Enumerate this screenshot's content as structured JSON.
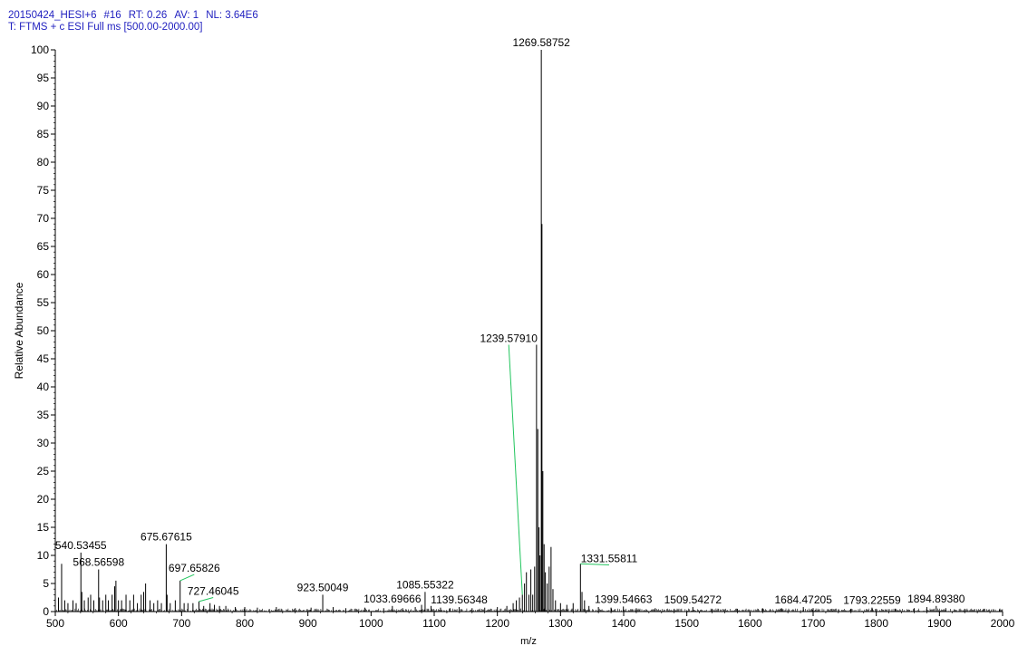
{
  "header": {
    "filename": "20150424_HESI+6",
    "scan": "#16",
    "rt": "RT: 0.26",
    "av": "AV: 1",
    "nl": "NL: 3.64E6",
    "filter": "T: FTMS + c ESI Full ms [500.00-2000.00]"
  },
  "colors": {
    "header_text": "#1f1fbf",
    "spectrum": "#000000",
    "label_leader": "#22c55e",
    "axis": "#000000"
  },
  "chart_data": {
    "type": "mass-spectrum",
    "xlabel": "m/z",
    "ylabel": "Relative Abundance",
    "xlim": [
      500,
      2000
    ],
    "ylim": [
      0,
      100
    ],
    "x_ticks": [
      500,
      600,
      700,
      800,
      900,
      1000,
      1100,
      1200,
      1300,
      1400,
      1500,
      1600,
      1700,
      1800,
      1900,
      2000
    ],
    "x_tick_labels": [
      "500",
      "600",
      "700",
      "800",
      "900",
      "1000",
      "1100",
      "1200",
      "1300",
      "1400",
      "1500",
      "1600",
      "1700",
      "1800",
      "1900",
      "2000"
    ],
    "y_ticks": [
      0,
      5,
      10,
      15,
      20,
      25,
      30,
      35,
      40,
      45,
      50,
      55,
      60,
      65,
      70,
      75,
      80,
      85,
      90,
      95,
      100
    ],
    "y_tick_labels": [
      "0",
      "5",
      "10",
      "15",
      "20",
      "25",
      "30",
      "35",
      "40",
      "45",
      "50",
      "55",
      "60",
      "65",
      "70",
      "75",
      "80",
      "85",
      "90",
      "95",
      "100"
    ],
    "peaks": [
      {
        "mz": 505,
        "ab": 2.5
      },
      {
        "mz": 510,
        "ab": 8.5
      },
      {
        "mz": 515,
        "ab": 2
      },
      {
        "mz": 520,
        "ab": 1.5
      },
      {
        "mz": 528,
        "ab": 2
      },
      {
        "mz": 533,
        "ab": 1.5
      },
      {
        "mz": 540.53455,
        "ab": 10.5
      },
      {
        "mz": 542,
        "ab": 3.5
      },
      {
        "mz": 546,
        "ab": 2
      },
      {
        "mz": 552,
        "ab": 2.5
      },
      {
        "mz": 556,
        "ab": 3
      },
      {
        "mz": 561,
        "ab": 2
      },
      {
        "mz": 568.56598,
        "ab": 7.5
      },
      {
        "mz": 570,
        "ab": 2.5
      },
      {
        "mz": 575,
        "ab": 2
      },
      {
        "mz": 580,
        "ab": 3
      },
      {
        "mz": 584,
        "ab": 2
      },
      {
        "mz": 590,
        "ab": 3
      },
      {
        "mz": 594,
        "ab": 4.5
      },
      {
        "mz": 596,
        "ab": 5.5
      },
      {
        "mz": 600,
        "ab": 2
      },
      {
        "mz": 605,
        "ab": 2
      },
      {
        "mz": 612,
        "ab": 3
      },
      {
        "mz": 618,
        "ab": 2
      },
      {
        "mz": 624,
        "ab": 3
      },
      {
        "mz": 630,
        "ab": 1.5
      },
      {
        "mz": 636,
        "ab": 3
      },
      {
        "mz": 640,
        "ab": 3.5
      },
      {
        "mz": 643,
        "ab": 5
      },
      {
        "mz": 650,
        "ab": 2
      },
      {
        "mz": 656,
        "ab": 1.5
      },
      {
        "mz": 662,
        "ab": 2
      },
      {
        "mz": 668,
        "ab": 1.5
      },
      {
        "mz": 675.67615,
        "ab": 12
      },
      {
        "mz": 677,
        "ab": 3
      },
      {
        "mz": 682,
        "ab": 1.5
      },
      {
        "mz": 690,
        "ab": 2
      },
      {
        "mz": 697.65826,
        "ab": 5.5
      },
      {
        "mz": 704,
        "ab": 1.5
      },
      {
        "mz": 710,
        "ab": 1.5
      },
      {
        "mz": 718,
        "ab": 1.5
      },
      {
        "mz": 727.46045,
        "ab": 1.8
      },
      {
        "mz": 735,
        "ab": 1
      },
      {
        "mz": 745,
        "ab": 1.5
      },
      {
        "mz": 752,
        "ab": 1.2
      },
      {
        "mz": 760,
        "ab": 1
      },
      {
        "mz": 770,
        "ab": 1
      },
      {
        "mz": 785,
        "ab": 0.8
      },
      {
        "mz": 800,
        "ab": 0.8
      },
      {
        "mz": 820,
        "ab": 0.7
      },
      {
        "mz": 850,
        "ab": 0.8
      },
      {
        "mz": 880,
        "ab": 0.6
      },
      {
        "mz": 905,
        "ab": 0.7
      },
      {
        "mz": 923.50049,
        "ab": 3
      },
      {
        "mz": 940,
        "ab": 0.8
      },
      {
        "mz": 960,
        "ab": 0.6
      },
      {
        "mz": 990,
        "ab": 0.7
      },
      {
        "mz": 1020,
        "ab": 0.6
      },
      {
        "mz": 1033.69666,
        "ab": 1
      },
      {
        "mz": 1050,
        "ab": 0.6
      },
      {
        "mz": 1070,
        "ab": 0.8
      },
      {
        "mz": 1080,
        "ab": 1.2
      },
      {
        "mz": 1085.55322,
        "ab": 3.5
      },
      {
        "mz": 1095,
        "ab": 1
      },
      {
        "mz": 1110,
        "ab": 0.7
      },
      {
        "mz": 1125,
        "ab": 0.6
      },
      {
        "mz": 1139.56348,
        "ab": 0.8
      },
      {
        "mz": 1160,
        "ab": 0.6
      },
      {
        "mz": 1180,
        "ab": 0.7
      },
      {
        "mz": 1200,
        "ab": 0.8
      },
      {
        "mz": 1215,
        "ab": 1
      },
      {
        "mz": 1225,
        "ab": 1.5
      },
      {
        "mz": 1230,
        "ab": 2
      },
      {
        "mz": 1235,
        "ab": 2.5
      },
      {
        "mz": 1239.5791,
        "ab": 3
      },
      {
        "mz": 1243,
        "ab": 5
      },
      {
        "mz": 1246,
        "ab": 7
      },
      {
        "mz": 1250,
        "ab": 3
      },
      {
        "mz": 1253,
        "ab": 7.5
      },
      {
        "mz": 1256,
        "ab": 3
      },
      {
        "mz": 1259,
        "ab": 8
      },
      {
        "mz": 1262,
        "ab": 47.5
      },
      {
        "mz": 1264,
        "ab": 32.5
      },
      {
        "mz": 1266,
        "ab": 15
      },
      {
        "mz": 1267.5,
        "ab": 10
      },
      {
        "mz": 1269.58752,
        "ab": 100
      },
      {
        "mz": 1270.6,
        "ab": 69
      },
      {
        "mz": 1272,
        "ab": 25
      },
      {
        "mz": 1274,
        "ab": 12
      },
      {
        "mz": 1276,
        "ab": 7
      },
      {
        "mz": 1279,
        "ab": 5
      },
      {
        "mz": 1282,
        "ab": 8
      },
      {
        "mz": 1285,
        "ab": 11.5
      },
      {
        "mz": 1288,
        "ab": 4
      },
      {
        "mz": 1292,
        "ab": 2
      },
      {
        "mz": 1300,
        "ab": 1.5
      },
      {
        "mz": 1310,
        "ab": 1.2
      },
      {
        "mz": 1320,
        "ab": 1.5
      },
      {
        "mz": 1331.55811,
        "ab": 8.5
      },
      {
        "mz": 1334,
        "ab": 3.5
      },
      {
        "mz": 1338,
        "ab": 2
      },
      {
        "mz": 1345,
        "ab": 1
      },
      {
        "mz": 1360,
        "ab": 0.8
      },
      {
        "mz": 1380,
        "ab": 0.7
      },
      {
        "mz": 1399.54663,
        "ab": 0.9
      },
      {
        "mz": 1420,
        "ab": 0.6
      },
      {
        "mz": 1450,
        "ab": 0.6
      },
      {
        "mz": 1480,
        "ab": 0.5
      },
      {
        "mz": 1509.54272,
        "ab": 0.8
      },
      {
        "mz": 1540,
        "ab": 0.5
      },
      {
        "mz": 1580,
        "ab": 0.5
      },
      {
        "mz": 1620,
        "ab": 0.6
      },
      {
        "mz": 1650,
        "ab": 0.6
      },
      {
        "mz": 1684.47205,
        "ab": 0.8
      },
      {
        "mz": 1700,
        "ab": 0.6
      },
      {
        "mz": 1730,
        "ab": 0.5
      },
      {
        "mz": 1760,
        "ab": 0.5
      },
      {
        "mz": 1793.22559,
        "ab": 0.7
      },
      {
        "mz": 1830,
        "ab": 0.5
      },
      {
        "mz": 1860,
        "ab": 0.6
      },
      {
        "mz": 1880,
        "ab": 0.8
      },
      {
        "mz": 1894.8938,
        "ab": 1
      },
      {
        "mz": 1910,
        "ab": 0.6
      },
      {
        "mz": 1940,
        "ab": 0.5
      },
      {
        "mz": 1970,
        "ab": 0.5
      },
      {
        "mz": 1995,
        "ab": 0.4
      }
    ],
    "annotations": [
      {
        "text": "540.53455",
        "mz": 540.53455,
        "ab": 10.5
      },
      {
        "text": "568.56598",
        "mz": 568.56598,
        "ab": 7.5
      },
      {
        "text": "675.67615",
        "mz": 675.67615,
        "ab": 12
      },
      {
        "text": "697.65826",
        "mz": 697.65826,
        "ab": 5.5,
        "leader": true,
        "label_ab": 6.6,
        "label_mz": 720
      },
      {
        "text": "727.46045",
        "mz": 727.46045,
        "ab": 1.8,
        "leader": true,
        "label_ab": 2.5,
        "label_mz": 750
      },
      {
        "text": "923.50049",
        "mz": 923.50049,
        "ab": 3
      },
      {
        "text": "1033.69666",
        "mz": 1033.69666,
        "ab": 1
      },
      {
        "text": "1085.55322",
        "mz": 1085.55322,
        "ab": 3.5
      },
      {
        "text": "1139.56348",
        "mz": 1139.56348,
        "ab": 0.8
      },
      {
        "text": "1239.57910",
        "mz": 1239.5791,
        "ab": 3,
        "leader": true,
        "label_ab": 47.5,
        "label_mz": 1218
      },
      {
        "text": "1269.58752",
        "mz": 1269.58752,
        "ab": 100
      },
      {
        "text": "1331.55811",
        "mz": 1331.55811,
        "ab": 8.5,
        "leader": true,
        "label_ab": 8.3,
        "label_mz": 1377
      },
      {
        "text": "1399.54663",
        "mz": 1399.54663,
        "ab": 0.9
      },
      {
        "text": "1509.54272",
        "mz": 1509.54272,
        "ab": 0.8
      },
      {
        "text": "1684.47205",
        "mz": 1684.47205,
        "ab": 0.8
      },
      {
        "text": "1793.22559",
        "mz": 1793.22559,
        "ab": 0.7
      },
      {
        "text": "1894.89380",
        "mz": 1894.8938,
        "ab": 1
      }
    ],
    "grid": false,
    "legend": "none"
  }
}
